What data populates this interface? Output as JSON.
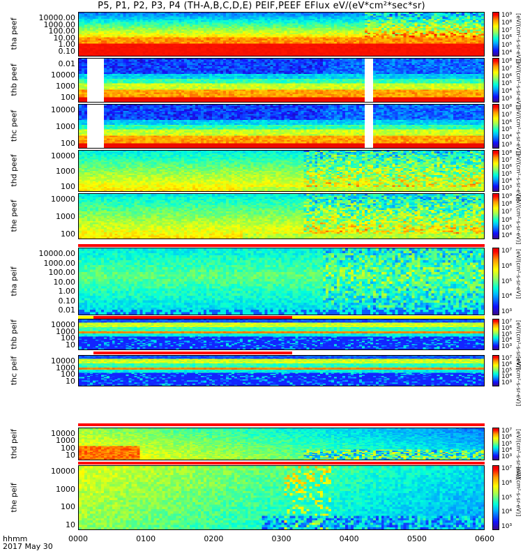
{
  "title": "P5, P1, P2, P3, P4 (TH-A,B,C,D,E) PEIF,PEEF EFlux eV/(eV*cm²*sec*sr)",
  "x_axis": {
    "label_line1": "hhmm",
    "label_line2": "2017 May 30",
    "ticks": [
      "0000",
      "0100",
      "0200",
      "0300",
      "0400",
      "0500",
      "0600"
    ]
  },
  "colorbar_unit": "[eV/(cm²-s-sr-eV)]",
  "colors": {
    "frame": "#000000",
    "flag_red": "#ff0000",
    "flag_yellow": "#ffff00",
    "gap": "#ffffff"
  },
  "chart_data": {
    "type": "heatmap",
    "x_range_hhmm": [
      "0000",
      "0600"
    ],
    "panels": [
      {
        "id": "tha-peef",
        "ylabel": "tha peef",
        "yticks": [
          "10000.00",
          "1000.00",
          "100.00",
          "10.00",
          "1.00",
          "0.10"
        ],
        "cbar_ticks": [
          "10⁹",
          "10⁸",
          "10⁷",
          "10⁶",
          "10⁵",
          "10⁴"
        ],
        "colormap": "rainbow",
        "pattern": "hot-low",
        "gaps": []
      },
      {
        "id": "thb-peef",
        "ylabel": "thb peef",
        "yticks": [
          "0.01",
          "10000",
          "1000",
          "100"
        ],
        "cbar_ticks": [
          "10⁸",
          "10⁷",
          "10⁶",
          "10⁵",
          "10⁴",
          "10³"
        ],
        "colormap": "rainbow",
        "pattern": "layered",
        "gaps": [
          [
            0.1,
            0.35
          ],
          [
            4.2,
            4.35
          ]
        ]
      },
      {
        "id": "thc-peef",
        "ylabel": "thc peef",
        "yticks": [
          "10000",
          "1000",
          "100"
        ],
        "cbar_ticks": [
          "10⁸",
          "10⁷",
          "10⁶",
          "10⁵",
          "10⁴",
          "10³"
        ],
        "colormap": "rainbow",
        "pattern": "layered",
        "gaps": [
          [
            0.1,
            0.35
          ],
          [
            4.2,
            4.35
          ]
        ]
      },
      {
        "id": "thd-peef",
        "ylabel": "thd peef",
        "yticks": [
          "10000",
          "1000",
          "100"
        ],
        "cbar_ticks": [
          "10⁸",
          "10⁷",
          "10⁶",
          "10⁵",
          "10⁴",
          "10³"
        ],
        "colormap": "rainbow",
        "pattern": "green",
        "gaps": []
      },
      {
        "id": "the-peef",
        "ylabel": "the peef",
        "yticks": [
          "10000",
          "1000",
          "100"
        ],
        "cbar_ticks": [
          "10⁹",
          "10⁸",
          "10⁷",
          "10⁶",
          "10⁵",
          "10⁴"
        ],
        "colormap": "rainbow",
        "pattern": "green",
        "gaps": []
      },
      {
        "id": "tha-peif",
        "ylabel": "tha peif",
        "yticks": [
          "10000.00",
          "1000.00",
          "100.00",
          "10.00",
          "1.00",
          "0.10",
          "0.01"
        ],
        "cbar_ticks": [
          "10⁷",
          "10⁶",
          "10⁵",
          "10⁴",
          "10³"
        ],
        "colormap": "rainbow",
        "pattern": "ion-a",
        "gaps": []
      },
      {
        "id": "thb-peif",
        "ylabel": "thb peif",
        "yticks": [
          "10000",
          "1000",
          "100",
          "10"
        ],
        "cbar_ticks": [
          "10⁷",
          "10⁶",
          "10⁵",
          "10⁴",
          "10³"
        ],
        "colormap": "rainbow",
        "pattern": "banded",
        "gaps": []
      },
      {
        "id": "thc-peif",
        "ylabel": "thc peif",
        "yticks": [
          "10000",
          "1000",
          "100",
          "10"
        ],
        "cbar_ticks": [
          "10⁷",
          "10⁶",
          "10⁵",
          "10⁴",
          "10³"
        ],
        "colormap": "rainbow",
        "pattern": "banded",
        "gaps": []
      },
      {
        "id": "thd-peif",
        "ylabel": "thd peif",
        "yticks": [
          "10000",
          "1000",
          "100",
          "10"
        ],
        "cbar_ticks": [
          "10⁷",
          "10⁶",
          "10⁵",
          "10⁴",
          "10³"
        ],
        "colormap": "rainbow",
        "pattern": "ion-d",
        "gaps": []
      },
      {
        "id": "the-peif",
        "ylabel": "the peif",
        "yticks": [
          "10000",
          "1000",
          "100",
          "10"
        ],
        "cbar_ticks": [
          "10⁷",
          "10⁶",
          "10⁵",
          "10⁴",
          "10³"
        ],
        "colormap": "rainbow",
        "pattern": "ion-e",
        "gaps": []
      }
    ]
  }
}
